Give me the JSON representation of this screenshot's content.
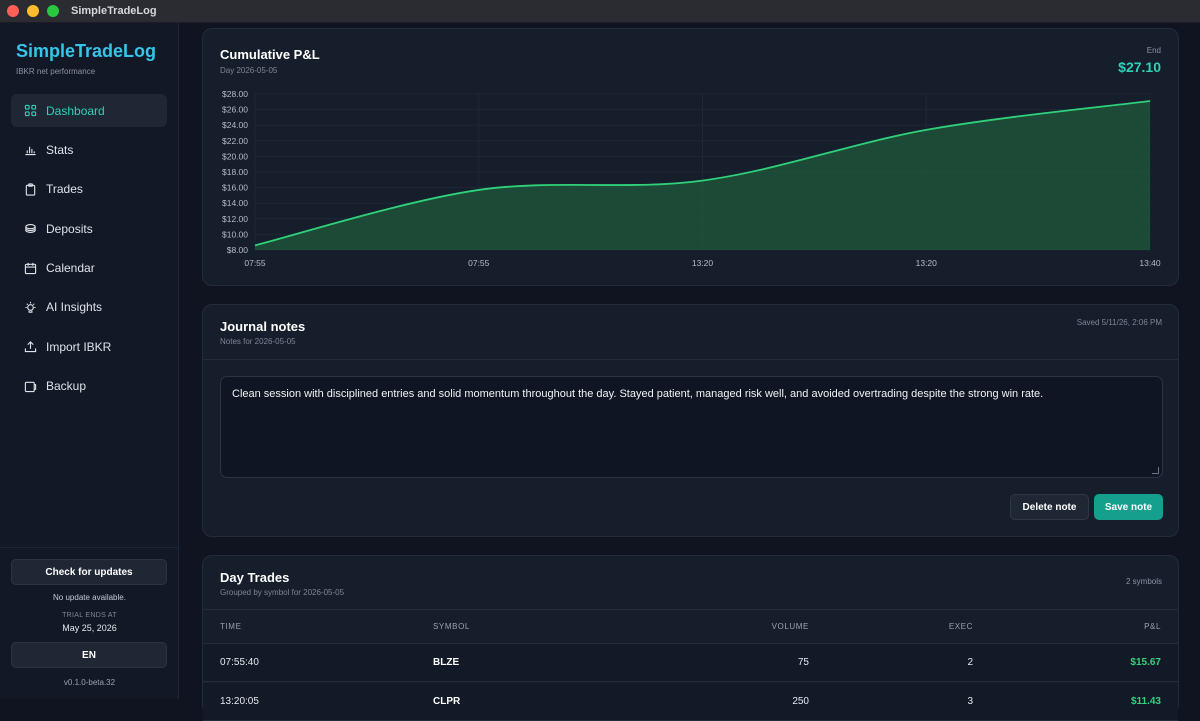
{
  "window": {
    "title": "SimpleTradeLog"
  },
  "sidebar": {
    "brand": "SimpleTradeLog",
    "brand_sub": "IBKR net performance",
    "items": [
      {
        "label": "Dashboard",
        "icon": "grid-icon",
        "active": true
      },
      {
        "label": "Stats",
        "icon": "bar-chart-icon"
      },
      {
        "label": "Trades",
        "icon": "clipboard-icon"
      },
      {
        "label": "Deposits",
        "icon": "coins-icon"
      },
      {
        "label": "Calendar",
        "icon": "calendar-icon"
      },
      {
        "label": "AI Insights",
        "icon": "lightbulb-icon"
      },
      {
        "label": "Import IBKR",
        "icon": "upload-icon"
      },
      {
        "label": "Backup",
        "icon": "backup-icon"
      }
    ],
    "update_button": "Check for updates",
    "update_status": "No update available.",
    "trial_label": "TRIAL ENDS AT",
    "trial_date": "May 25, 2026",
    "lang_button": "EN",
    "version": "v0.1.0-beta.32"
  },
  "pnl_card": {
    "title": "Cumulative P&L",
    "subtitle": "Day 2026-05-05",
    "end_label": "End",
    "end_value": "$27.10"
  },
  "chart_data": {
    "type": "area",
    "title": "Cumulative P&L",
    "x": [
      "07:55",
      "07:55",
      "13:20",
      "13:20",
      "13:40"
    ],
    "series": [
      {
        "values": [
          8.6,
          15.7,
          16.9,
          23.4,
          27.1
        ]
      }
    ],
    "y_tick_labels": [
      "$28.00",
      "$26.00",
      "$24.00",
      "$22.00",
      "$20.00",
      "$18.00",
      "$16.00",
      "$14.00",
      "$12.00",
      "$10.00",
      "$8.00"
    ],
    "x_tick_labels": [
      "07:55",
      "07:55",
      "13:20",
      "13:20",
      "13:40"
    ],
    "ylim": [
      8,
      28
    ],
    "grid": true,
    "line_color": "#2fd27a",
    "fill_color": "#1f5a3c"
  },
  "notes": {
    "title": "Journal notes",
    "subtitle": "Notes for 2026-05-05",
    "saved": "Saved 5/11/26, 2:06 PM",
    "text": "Clean session with disciplined entries and solid momentum throughout the day. Stayed patient, managed risk well, and avoided overtrading despite the strong win rate.",
    "delete_button": "Delete note",
    "save_button": "Save note"
  },
  "trades": {
    "title": "Day Trades",
    "subtitle": "Grouped by symbol for 2026-05-05",
    "count": "2 symbols",
    "columns": [
      "TIME",
      "SYMBOL",
      "VOLUME",
      "EXEC",
      "P&L"
    ],
    "rows": [
      {
        "time": "07:55:40",
        "symbol": "BLZE",
        "volume": "75",
        "exec": "2",
        "pnl": "$15.67"
      },
      {
        "time": "13:20:05",
        "symbol": "CLPR",
        "volume": "250",
        "exec": "3",
        "pnl": "$11.43"
      }
    ]
  }
}
